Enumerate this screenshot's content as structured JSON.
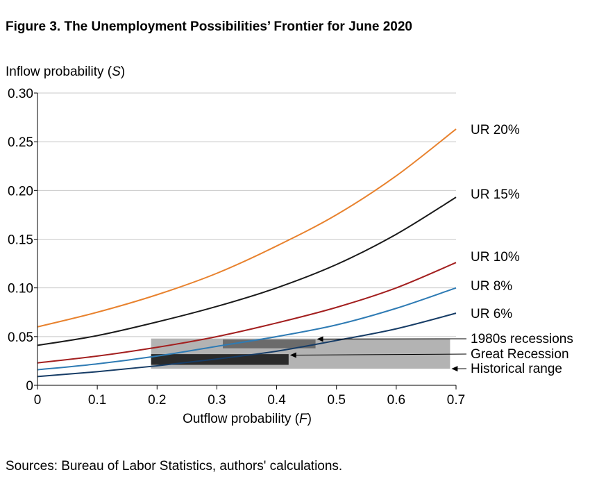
{
  "figure": {
    "title": "Figure 3. The Unemployment Possibilities’ Frontier for June 2020",
    "source": "Sources: Bureau of Labor Statistics, authors' calculations."
  },
  "chart_data": {
    "type": "line",
    "ylabel_text": "Inflow probability (",
    "ylabel_var": "S",
    "ylabel_close": ")",
    "xlabel_text": "Outflow probability (",
    "xlabel_var": "F",
    "xlabel_close": ")",
    "xlim": [
      0,
      0.7
    ],
    "ylim": [
      0,
      0.3
    ],
    "xticks": [
      0,
      0.1,
      0.2,
      0.3,
      0.4,
      0.5,
      0.6,
      0.7
    ],
    "xtick_labels": [
      "0",
      "0.1",
      "0.2",
      "0.3",
      "0.4",
      "0.5",
      "0.6",
      "0.7"
    ],
    "yticks": [
      0,
      0.05,
      0.1,
      0.15,
      0.2,
      0.25,
      0.3
    ],
    "ytick_labels": [
      "0",
      "0.05",
      "0.10",
      "0.15",
      "0.20",
      "0.25",
      "0.30"
    ],
    "grid": "horizontal",
    "series": [
      {
        "name": "UR 20%",
        "color": "#e8822e",
        "x": [
          0,
          0.1,
          0.2,
          0.3,
          0.4,
          0.5,
          0.6,
          0.7
        ],
        "y": [
          0.06,
          0.075,
          0.093,
          0.115,
          0.143,
          0.175,
          0.215,
          0.263
        ]
      },
      {
        "name": "UR 15%",
        "color": "#1a1a1a",
        "x": [
          0,
          0.1,
          0.2,
          0.3,
          0.4,
          0.5,
          0.6,
          0.7
        ],
        "y": [
          0.041,
          0.051,
          0.065,
          0.081,
          0.1,
          0.124,
          0.155,
          0.193
        ]
      },
      {
        "name": "UR 10%",
        "color": "#a31f1f",
        "x": [
          0,
          0.1,
          0.2,
          0.3,
          0.4,
          0.5,
          0.6,
          0.7
        ],
        "y": [
          0.023,
          0.03,
          0.039,
          0.05,
          0.064,
          0.08,
          0.1,
          0.126
        ]
      },
      {
        "name": "UR 8%",
        "color": "#2e7bb4",
        "x": [
          0,
          0.1,
          0.2,
          0.3,
          0.4,
          0.5,
          0.6,
          0.7
        ],
        "y": [
          0.016,
          0.022,
          0.03,
          0.04,
          0.05,
          0.062,
          0.079,
          0.1
        ]
      },
      {
        "name": "UR 6%",
        "color": "#163c66",
        "x": [
          0,
          0.1,
          0.2,
          0.3,
          0.4,
          0.5,
          0.6,
          0.7
        ],
        "y": [
          0.009,
          0.014,
          0.02,
          0.027,
          0.035,
          0.046,
          0.058,
          0.074
        ]
      }
    ],
    "regions": [
      {
        "name": "Historical range",
        "color": "#b3b3b3",
        "x": [
          0.19,
          0.69
        ],
        "y": [
          0.017,
          0.048
        ]
      },
      {
        "name": "1980s recessions",
        "color": "#6b6b6b",
        "x": [
          0.31,
          0.465
        ],
        "y": [
          0.038,
          0.047
        ]
      },
      {
        "name": "Great Recession",
        "color": "#2b2b2b",
        "x": [
          0.19,
          0.42
        ],
        "y": [
          0.021,
          0.032
        ]
      }
    ],
    "region_labels": [
      {
        "text": "1980s recessions",
        "arrow_x": 0.465,
        "arrow_y": 0.0475
      },
      {
        "text": "Great Recession",
        "arrow_x": 0.42,
        "arrow_y": 0.031
      },
      {
        "text": "Historical range",
        "arrow_x": 0.69,
        "arrow_y": 0.017
      }
    ]
  }
}
